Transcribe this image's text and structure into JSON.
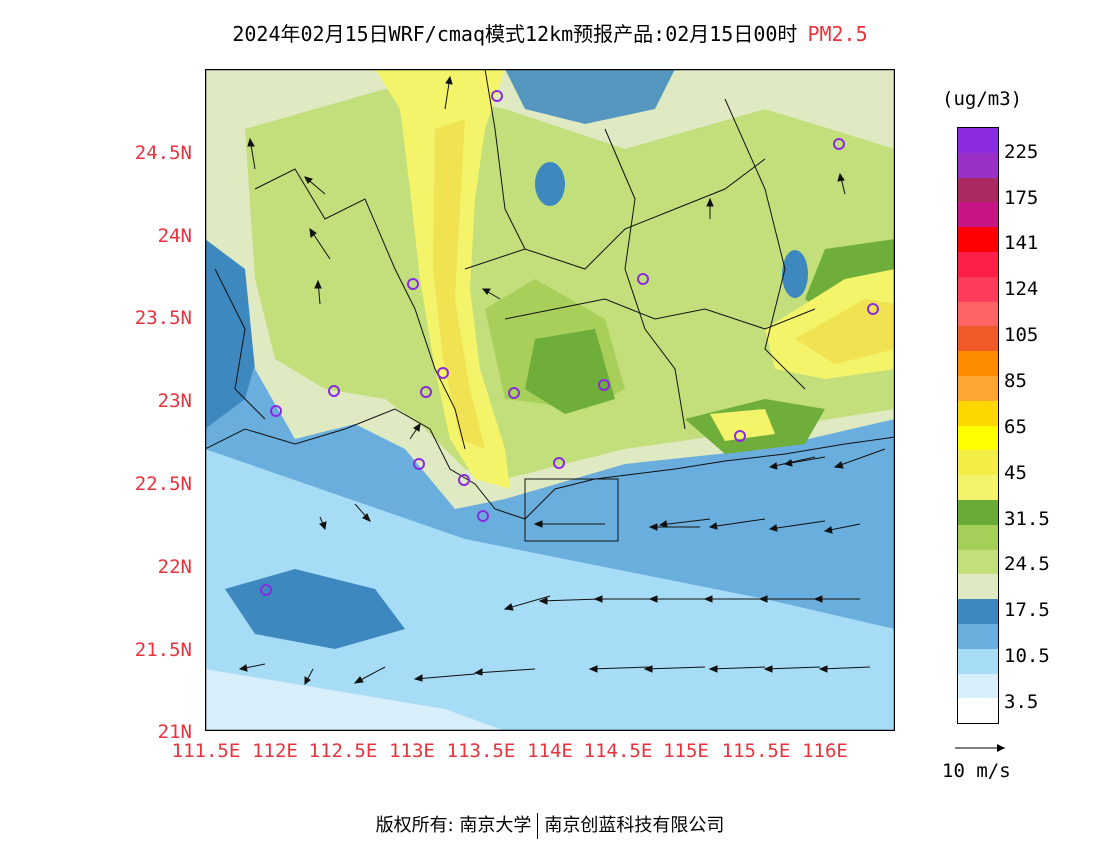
{
  "header": {
    "title_main": "2024年02月15日WRF/cmaq模式12km预报产品:02月15日00时",
    "title_species": "PM2.5"
  },
  "map": {
    "lat_labels": [
      "24.5N",
      "24N",
      "23.5N",
      "23N",
      "22.5N",
      "22N",
      "21.5N",
      "21N"
    ],
    "lon_labels": [
      "111.5E",
      "112E",
      "112.5E",
      "113E",
      "113.5E",
      "114E",
      "114.5E",
      "115E",
      "115.5E",
      "116E"
    ],
    "colors": {
      "sea_light": "#a6dcf5",
      "sea_mid": "#6aaedd",
      "sea_dark": "#3e88c0",
      "land_pale": "#dfeac3",
      "land_green": "#c3df7b",
      "land_mid": "#a7cf5a",
      "land_dark": "#6fae3a",
      "yellow": "#f4f46b",
      "yellow_deep": "#f0e250"
    },
    "station_marker_icon": "circle-station-icon",
    "wind_arrow_icon": "wind-vector-arrow-icon"
  },
  "colorbar": {
    "unit": "(ug/m3)",
    "colors_top_to_bottom": [
      "#8b2be2",
      "#9b30c8",
      "#a82a60",
      "#c71585",
      "#ff0000",
      "#ff1e46",
      "#ff3c5a",
      "#ff6464",
      "#f05a28",
      "#ff8c00",
      "#ffa532",
      "#ffd700",
      "#ffff00",
      "#f4ed47",
      "#f4f46b",
      "#6aaa36",
      "#a6cf5a",
      "#c3df7b",
      "#dfeac3",
      "#3e88c0",
      "#6aaedd",
      "#a6dcf5",
      "#d8eefa",
      "#ffffff"
    ],
    "labels": [
      "225",
      "175",
      "141",
      "124",
      "105",
      "85",
      "65",
      "45",
      "31.5",
      "24.5",
      "17.5",
      "10.5",
      "3.5"
    ],
    "wind_reference": "10 m/s"
  },
  "footer": {
    "left": "版权所有: 南京大学",
    "right": "南京创蓝科技有限公司"
  }
}
